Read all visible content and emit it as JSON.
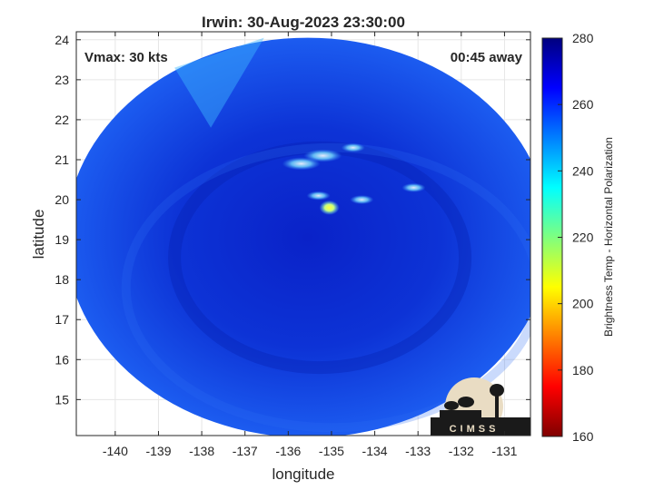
{
  "chart_data": {
    "type": "heatmap",
    "title": "Irwin: 30-Aug-2023 23:30:00",
    "xlabel": "longitude",
    "ylabel": "latitude",
    "xlim": [
      -140.9,
      -130.4
    ],
    "ylim": [
      14.1,
      24.2
    ],
    "x_ticks": [
      -140,
      -139,
      -138,
      -137,
      -136,
      -135,
      -134,
      -133,
      -132,
      -131
    ],
    "y_ticks": [
      15,
      16,
      17,
      18,
      19,
      20,
      21,
      22,
      23,
      24
    ],
    "grid": true,
    "annotations": {
      "vmax": "Vmax: 30 kts",
      "time_away": "00:45 away"
    },
    "colorbar": {
      "label": "Brightness Temp - Horizontal Polarization",
      "range": [
        160,
        280
      ],
      "ticks": [
        160,
        180,
        200,
        220,
        240,
        260,
        280
      ],
      "colormap": [
        "#7f0000",
        "#ff0000",
        "#ff7f00",
        "#ffff00",
        "#7fff7f",
        "#00ffff",
        "#007fff",
        "#0000ff",
        "#00007f"
      ]
    },
    "swath": {
      "center_lon": -135.55,
      "center_lat": 19.05,
      "radius_lon": 5.6,
      "radius_lat": 5.0,
      "base_value": 262
    },
    "features": [
      {
        "lon": -135.05,
        "lat": 19.8,
        "value": 205
      },
      {
        "lon": -135.3,
        "lat": 20.1,
        "value": 238
      },
      {
        "lon": -135.2,
        "lat": 21.1,
        "value": 240
      },
      {
        "lon": -135.7,
        "lat": 20.9,
        "value": 245
      },
      {
        "lon": -134.5,
        "lat": 21.3,
        "value": 248
      },
      {
        "lon": -134.3,
        "lat": 20.0,
        "value": 250
      },
      {
        "lon": -133.1,
        "lat": 20.3,
        "value": 252
      }
    ],
    "logo": "CIMSS"
  }
}
